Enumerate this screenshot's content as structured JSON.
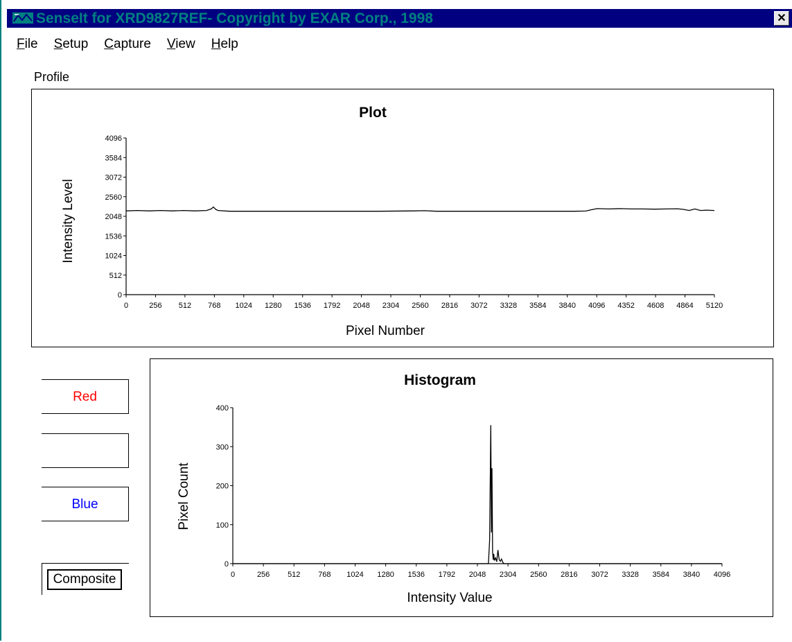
{
  "window": {
    "title": "SenseIt for XRD9827REF- Copyright by EXAR Corp., 1998",
    "close_glyph": "✕"
  },
  "menu": [
    {
      "accel": "F",
      "rest": "ile"
    },
    {
      "accel": "S",
      "rest": "etup"
    },
    {
      "accel": "C",
      "rest": "apture"
    },
    {
      "accel": "V",
      "rest": "iew"
    },
    {
      "accel": "H",
      "rest": "elp"
    }
  ],
  "profile_label": "Profile",
  "channel_buttons": {
    "red": {
      "label": "Red",
      "color": "#ff0000"
    },
    "green": {
      "label": ""
    },
    "blue": {
      "label": "Blue",
      "color": "#0000ff"
    },
    "composite": {
      "label": "Composite"
    }
  },
  "chart_data": [
    {
      "type": "line",
      "title": "Plot",
      "xlabel": "Pixel Number",
      "ylabel": "Intensity Level",
      "xlim": [
        0,
        5120
      ],
      "ylim": [
        0,
        4096
      ],
      "xticks": [
        0,
        256,
        512,
        768,
        1024,
        1280,
        1536,
        1792,
        2048,
        2304,
        2560,
        2816,
        3072,
        3328,
        3584,
        3840,
        4096,
        4352,
        4608,
        4864,
        5120
      ],
      "yticks": [
        0,
        512,
        1024,
        1536,
        2048,
        2560,
        3072,
        3584,
        4096
      ],
      "series": [
        {
          "x": [
            0,
            100,
            200,
            300,
            400,
            500,
            600,
            700,
            740,
            760,
            780,
            800,
            900,
            1100,
            1300,
            1600,
            1900,
            2200,
            2500,
            2600,
            2700,
            2900,
            3100,
            3300,
            3500,
            3700,
            3900,
            4000,
            4050,
            4100,
            4200,
            4300,
            4400,
            4500,
            4600,
            4700,
            4800,
            4850,
            4900,
            4950,
            5000,
            5050,
            5120
          ],
          "y": [
            2190,
            2200,
            2190,
            2200,
            2190,
            2200,
            2190,
            2200,
            2240,
            2290,
            2230,
            2200,
            2180,
            2180,
            2180,
            2180,
            2180,
            2180,
            2190,
            2195,
            2180,
            2180,
            2180,
            2180,
            2180,
            2180,
            2180,
            2185,
            2220,
            2250,
            2240,
            2250,
            2240,
            2240,
            2235,
            2240,
            2245,
            2230,
            2200,
            2240,
            2200,
            2210,
            2200
          ]
        }
      ]
    },
    {
      "type": "line",
      "title": "Histogram",
      "xlabel": "Intensity Value",
      "ylabel": "Pixel Count",
      "xlim": [
        0,
        4096
      ],
      "ylim": [
        0,
        400
      ],
      "xticks": [
        0,
        256,
        512,
        768,
        1024,
        1280,
        1536,
        1792,
        2048,
        2304,
        2560,
        2816,
        3072,
        3328,
        3584,
        3840,
        4096
      ],
      "yticks": [
        0,
        100,
        200,
        300,
        400
      ],
      "series": [
        {
          "x": [
            0,
            2140,
            2150,
            2160,
            2165,
            2170,
            2175,
            2180,
            2185,
            2190,
            2200,
            2210,
            2220,
            2230,
            2240,
            2250,
            2260,
            2270,
            4096
          ],
          "y": [
            0,
            0,
            60,
            355,
            80,
            245,
            30,
            10,
            25,
            8,
            15,
            5,
            35,
            10,
            6,
            12,
            4,
            0,
            0
          ]
        }
      ]
    }
  ]
}
